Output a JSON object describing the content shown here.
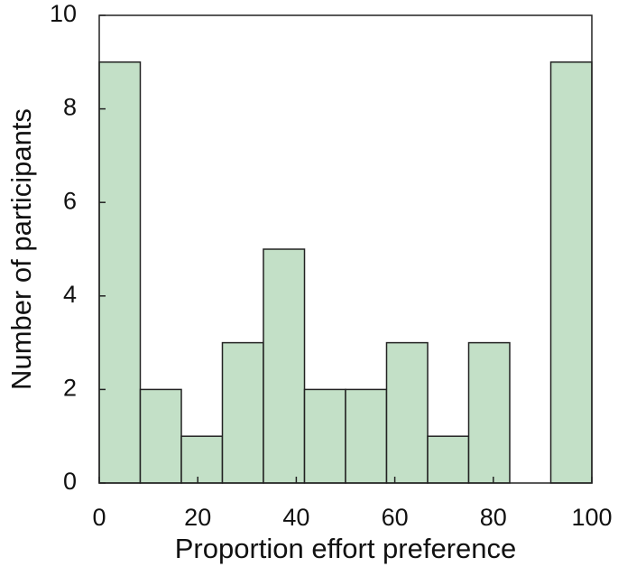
{
  "chart_data": {
    "type": "histogram",
    "xlabel": "Proportion effort preference",
    "ylabel": "Number of participants",
    "bins": [
      0,
      8.33,
      16.67,
      25,
      33.33,
      41.67,
      50,
      58.33,
      66.67,
      75,
      83.33,
      91.67,
      100
    ],
    "counts": [
      9,
      2,
      1,
      3,
      5,
      2,
      2,
      3,
      1,
      3,
      0,
      9
    ],
    "color": "#c3e0c7",
    "edgecolor": "#222222",
    "xlim": [
      0,
      100
    ],
    "xticks": [
      0,
      20,
      40,
      60,
      80,
      100
    ],
    "ylim": [
      0,
      10
    ],
    "yticks": [
      0,
      2,
      4,
      6,
      8,
      10
    ]
  }
}
